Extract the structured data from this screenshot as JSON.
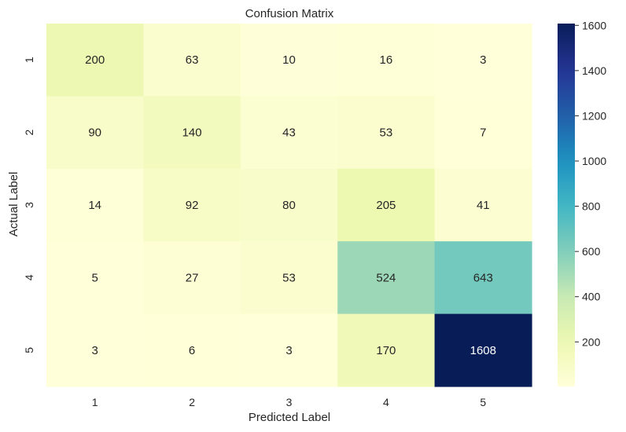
{
  "chart_data": {
    "type": "heatmap",
    "title": "Confusion Matrix",
    "xlabel": "Predicted Label",
    "ylabel": "Actual Label",
    "x_categories": [
      "1",
      "2",
      "3",
      "4",
      "5"
    ],
    "y_categories": [
      "1",
      "2",
      "3",
      "4",
      "5"
    ],
    "values": [
      [
        200,
        63,
        10,
        16,
        3
      ],
      [
        90,
        140,
        43,
        53,
        7
      ],
      [
        14,
        92,
        80,
        205,
        41
      ],
      [
        5,
        27,
        53,
        524,
        643
      ],
      [
        3,
        6,
        3,
        170,
        1608
      ]
    ],
    "colormap": "YlGnBu",
    "color_range": [
      3,
      1608
    ],
    "colorbar_ticks": [
      200,
      400,
      600,
      800,
      1000,
      1200,
      1400,
      1600
    ],
    "annotate_cells": true,
    "grid": false
  }
}
